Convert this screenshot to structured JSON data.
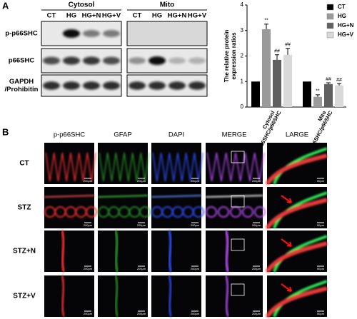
{
  "panel_a": {
    "label": "A",
    "blot": {
      "groups": [
        {
          "name": "Cytosol",
          "lanes": [
            "CT",
            "HG",
            "HG+N",
            "HG+V"
          ]
        },
        {
          "name": "Mito",
          "lanes": [
            "CT",
            "HG",
            "HG+N",
            "HG+V"
          ]
        }
      ],
      "rows": [
        [
          "p-p66SHC"
        ],
        [
          "p66SHC"
        ],
        [
          "GAPDH",
          "/Prohibitin"
        ]
      ]
    }
  },
  "chart_data": {
    "type": "bar",
    "ylabel": [
      "The relative protein",
      "expression ratios"
    ],
    "categories": [
      [
        "Cytosol",
        "p-p66SHC/p66SHC"
      ],
      [
        "Mito",
        "p-p66SHC/p66SHC"
      ]
    ],
    "series": [
      {
        "name": "CT",
        "color": "#000000",
        "values": [
          1,
          1
        ],
        "errors": [
          0,
          0
        ],
        "annotations": [
          null,
          null
        ]
      },
      {
        "name": "HG",
        "color": "#9a9a9a",
        "values": [
          3.05,
          0.4
        ],
        "errors": [
          0.2,
          0.08
        ],
        "annotations": [
          "**",
          "**"
        ]
      },
      {
        "name": "HG+N",
        "color": "#606060",
        "values": [
          1.85,
          0.9
        ],
        "errors": [
          0.2,
          0.05
        ],
        "annotations": [
          "##",
          "##"
        ]
      },
      {
        "name": "HG+V",
        "color": "#d9d9d9",
        "values": [
          2.05,
          0.85
        ],
        "errors": [
          0.25,
          0.07
        ],
        "annotations": [
          "##",
          "##"
        ]
      }
    ],
    "ylim": [
      0,
      4
    ],
    "yticks": [
      0,
      1,
      2,
      3,
      4
    ]
  },
  "panel_b": {
    "label": "B",
    "columns": [
      "p-p66SHC",
      "GFAP",
      "DAPI",
      "MERGE",
      "LARGE"
    ],
    "rows": [
      "CT",
      "STZ",
      "STZ+N",
      "STZ+V"
    ],
    "scale_bars": [
      "200μm",
      "200μm",
      "200μm",
      "200μm",
      "50μm"
    ]
  }
}
